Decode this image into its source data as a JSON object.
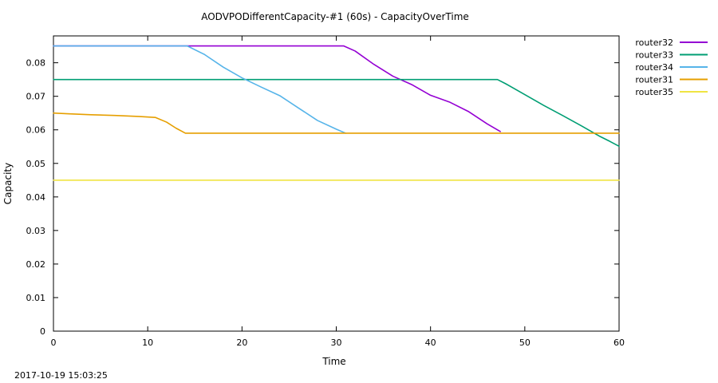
{
  "chart_data": {
    "type": "line",
    "title": "AODVPODifferentCapacity-#1 (60s) - CapacityOverTime",
    "xlabel": "Time",
    "ylabel": "Capacity",
    "xlim": [
      0,
      60
    ],
    "ylim": [
      0,
      0.088
    ],
    "xticks": [
      0,
      10,
      20,
      30,
      40,
      50,
      60
    ],
    "yticks": [
      0,
      0.01,
      0.02,
      0.03,
      0.04,
      0.05,
      0.06,
      0.07,
      0.08
    ],
    "xtick_labels": [
      "0",
      "10",
      "20",
      "30",
      "40",
      "50",
      "60"
    ],
    "ytick_labels": [
      "0",
      "0.01",
      "0.02",
      "0.03",
      "0.04",
      "0.05",
      "0.06",
      "0.07",
      "0.08"
    ],
    "grid": false,
    "legend_position": "outside-top-right",
    "timestamp": "2017-10-19 15:03:25",
    "series": [
      {
        "name": "router32",
        "color": "#9400d3",
        "points": [
          [
            0,
            0.085
          ],
          [
            30.8,
            0.085
          ],
          [
            32,
            0.0835
          ],
          [
            34,
            0.0795
          ],
          [
            36,
            0.076
          ],
          [
            38,
            0.0735
          ],
          [
            40,
            0.0703
          ],
          [
            42,
            0.0683
          ],
          [
            44,
            0.0655
          ],
          [
            46,
            0.0618
          ],
          [
            47.4,
            0.0595
          ]
        ]
      },
      {
        "name": "router33",
        "color": "#009e73",
        "points": [
          [
            0,
            0.075
          ],
          [
            47.1,
            0.075
          ],
          [
            48,
            0.0737
          ],
          [
            50,
            0.0705
          ],
          [
            52,
            0.0673
          ],
          [
            54,
            0.0643
          ],
          [
            56,
            0.0612
          ],
          [
            58,
            0.058
          ],
          [
            59,
            0.0566
          ],
          [
            60,
            0.0551
          ]
        ]
      },
      {
        "name": "router34",
        "color": "#56b4e9",
        "points": [
          [
            0,
            0.085
          ],
          [
            14.2,
            0.085
          ],
          [
            16,
            0.0825
          ],
          [
            18,
            0.0787
          ],
          [
            20,
            0.0755
          ],
          [
            22,
            0.0728
          ],
          [
            24,
            0.0702
          ],
          [
            26,
            0.0665
          ],
          [
            28,
            0.0628
          ],
          [
            30,
            0.0602
          ],
          [
            31,
            0.059
          ]
        ]
      },
      {
        "name": "router31",
        "color": "#e69f00",
        "points": [
          [
            0,
            0.065
          ],
          [
            1.5,
            0.0648
          ],
          [
            4,
            0.0645
          ],
          [
            6.5,
            0.0643
          ],
          [
            9,
            0.064
          ],
          [
            10.8,
            0.0637
          ],
          [
            12,
            0.0623
          ],
          [
            13,
            0.0605
          ],
          [
            14,
            0.059
          ],
          [
            60,
            0.059
          ]
        ]
      },
      {
        "name": "router35",
        "color": "#f0e442",
        "points": [
          [
            0,
            0.045
          ],
          [
            60,
            0.045
          ]
        ]
      }
    ]
  }
}
